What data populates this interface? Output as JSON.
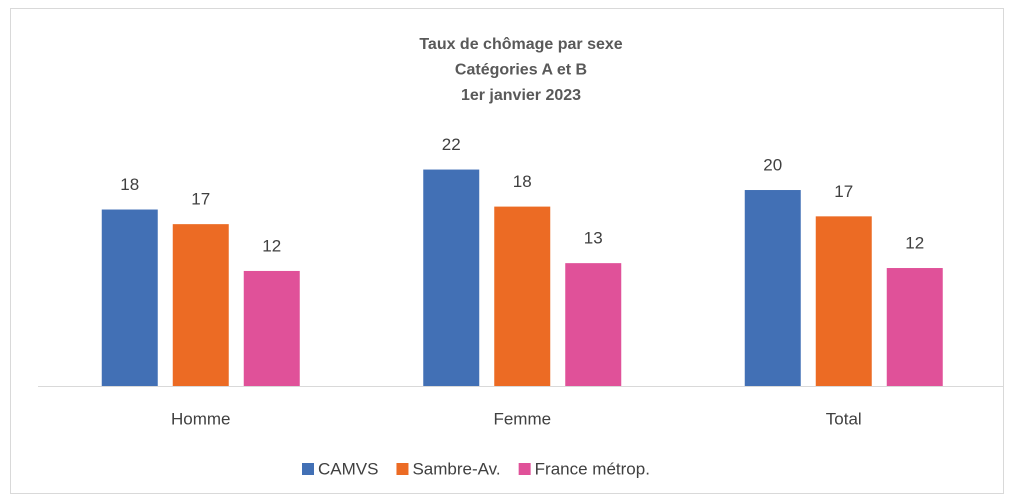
{
  "chart_data": {
    "type": "bar",
    "title": [
      "Taux de chômage par sexe",
      "Catégories A et B",
      "1er janvier 2023"
    ],
    "categories": [
      "Homme",
      "Femme",
      "Total"
    ],
    "series": [
      {
        "name": "CAMVS",
        "color": "#4270b5",
        "values": [
          18.1,
          22.2,
          20.1
        ],
        "value_labels": [
          "18",
          "22",
          "20"
        ]
      },
      {
        "name": "Sambre-Av.",
        "color": "#ec6b24",
        "values": [
          16.6,
          18.4,
          17.4
        ],
        "value_labels": [
          "17",
          "18",
          "17"
        ]
      },
      {
        "name": "France métrop.",
        "color": "#e05199",
        "values": [
          11.8,
          12.6,
          12.1
        ],
        "value_labels": [
          "12",
          "13",
          "12"
        ]
      }
    ],
    "legend": "bottom"
  }
}
